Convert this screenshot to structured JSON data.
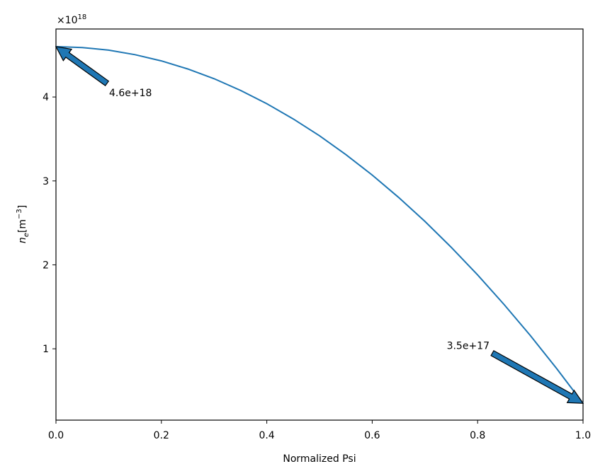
{
  "chart_data": {
    "type": "line",
    "xlabel": "Normalized Psi",
    "ylabel": {
      "symbol": "n",
      "subscript": "e",
      "unit": "[m",
      "exponent": "−3",
      "close": "]"
    },
    "offset_text": {
      "base": "×10",
      "exponent": "18"
    },
    "x": [
      0,
      0.05,
      0.1,
      0.15,
      0.2,
      0.25,
      0.3,
      0.35,
      0.4,
      0.45,
      0.5,
      0.55,
      0.6,
      0.65,
      0.7,
      0.75,
      0.8,
      0.85,
      0.9,
      0.95,
      1
    ],
    "series": [
      {
        "color": "#1f77b4",
        "values": [
          4.6,
          4.589,
          4.558,
          4.504,
          4.43,
          4.334,
          4.218,
          4.079,
          3.92,
          3.739,
          3.538,
          3.314,
          3.07,
          2.804,
          2.518,
          2.209,
          1.88,
          1.529,
          1.158,
          0.764,
          0.35
        ]
      }
    ],
    "annotations": [
      {
        "text": "4.6e+18",
        "x": 0,
        "y": 4.6
      },
      {
        "text": "3.5e+17",
        "x": 1,
        "y": 0.35
      }
    ],
    "xlim": [
      0,
      1
    ],
    "ylim": [
      0.15,
      4.81
    ],
    "xticks": [
      {
        "value": 0,
        "label": "0.0"
      },
      {
        "value": 0.2,
        "label": "0.2"
      },
      {
        "value": 0.4,
        "label": "0.4"
      },
      {
        "value": 0.6,
        "label": "0.6"
      },
      {
        "value": 0.8,
        "label": "0.8"
      },
      {
        "value": 1,
        "label": "1.0"
      }
    ],
    "yticks": [
      1,
      2,
      3,
      4
    ]
  }
}
